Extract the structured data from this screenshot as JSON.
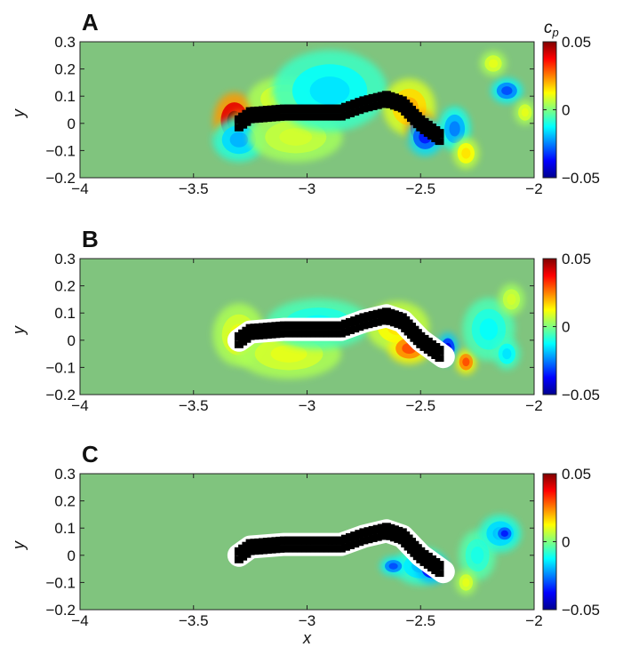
{
  "chart_data": [
    {
      "type": "heatmap",
      "panel_label": "A",
      "xlabel": "",
      "ylabel": "y",
      "xlim": [
        -4,
        -2
      ],
      "ylim": [
        -0.2,
        0.3
      ],
      "x_ticks": [
        "−4",
        "−3.5",
        "−3",
        "−2.5",
        "−2"
      ],
      "y_ticks": [
        "0.3",
        "0.2",
        "0.1",
        "0",
        "−0.1",
        "−0.2"
      ],
      "colorbar": {
        "label": "c_p",
        "label_base": "c",
        "label_sub": "p",
        "ticks": [
          "0.05",
          "0",
          "−0.05"
        ],
        "range": [
          -0.05,
          0.05
        ]
      },
      "body_masked": false,
      "body_shape": [
        [
          -3.3,
          0.0
        ],
        [
          -3.25,
          0.03
        ],
        [
          -3.1,
          0.04
        ],
        [
          -2.85,
          0.04
        ],
        [
          -2.75,
          0.07
        ],
        [
          -2.65,
          0.09
        ],
        [
          -2.58,
          0.07
        ],
        [
          -2.5,
          0.0
        ],
        [
          -2.4,
          -0.06
        ]
      ],
      "features": [
        {
          "x": -3.32,
          "y": 0.01,
          "rx": 0.08,
          "ry": 0.09,
          "cp": 0.05
        },
        {
          "x": -3.3,
          "y": 0.01,
          "rx": 0.03,
          "ry": 0.03,
          "cp": 0.05
        },
        {
          "x": -3.3,
          "y": -0.06,
          "rx": 0.1,
          "ry": 0.07,
          "cp": -0.02
        },
        {
          "x": -3.1,
          "y": 0.09,
          "rx": 0.14,
          "ry": 0.07,
          "cp": 0.01
        },
        {
          "x": -3.05,
          "y": -0.05,
          "rx": 0.18,
          "ry": 0.08,
          "cp": 0.008
        },
        {
          "x": -2.9,
          "y": 0.12,
          "rx": 0.22,
          "ry": 0.13,
          "cp": -0.015
        },
        {
          "x": -2.55,
          "y": 0.06,
          "rx": 0.1,
          "ry": 0.09,
          "cp": 0.02
        },
        {
          "x": -2.5,
          "y": -0.02,
          "rx": 0.06,
          "ry": 0.06,
          "cp": 0.05
        },
        {
          "x": -2.48,
          "y": -0.05,
          "rx": 0.07,
          "ry": 0.06,
          "cp": -0.035
        },
        {
          "x": -2.35,
          "y": -0.02,
          "rx": 0.06,
          "ry": 0.07,
          "cp": -0.025
        },
        {
          "x": -2.3,
          "y": -0.11,
          "rx": 0.05,
          "ry": 0.05,
          "cp": 0.015
        },
        {
          "x": -2.12,
          "y": 0.12,
          "rx": 0.06,
          "ry": 0.04,
          "cp": -0.03
        },
        {
          "x": -2.18,
          "y": 0.22,
          "rx": 0.05,
          "ry": 0.04,
          "cp": 0.01
        },
        {
          "x": -2.04,
          "y": 0.04,
          "rx": 0.04,
          "ry": 0.04,
          "cp": 0.01
        }
      ]
    },
    {
      "type": "heatmap",
      "panel_label": "B",
      "xlabel": "",
      "ylabel": "y",
      "xlim": [
        -4,
        -2
      ],
      "ylim": [
        -0.2,
        0.3
      ],
      "x_ticks": [
        "−4",
        "−3.5",
        "−3",
        "−2.5",
        "−2"
      ],
      "y_ticks": [
        "0.3",
        "0.2",
        "0.1",
        "0",
        "−0.1",
        "−0.2"
      ],
      "colorbar": {
        "label": "",
        "label_base": "",
        "label_sub": "",
        "ticks": [
          "0.05",
          "0",
          "−0.05"
        ],
        "range": [
          -0.05,
          0.05
        ]
      },
      "body_masked": true,
      "body_shape": [
        [
          -3.3,
          0.0
        ],
        [
          -3.25,
          0.03
        ],
        [
          -3.1,
          0.04
        ],
        [
          -2.85,
          0.04
        ],
        [
          -2.75,
          0.07
        ],
        [
          -2.65,
          0.09
        ],
        [
          -2.58,
          0.07
        ],
        [
          -2.5,
          0.0
        ],
        [
          -2.4,
          -0.06
        ]
      ],
      "features": [
        {
          "x": -3.3,
          "y": 0.02,
          "rx": 0.1,
          "ry": 0.1,
          "cp": 0.01
        },
        {
          "x": -3.3,
          "y": 0.0,
          "rx": 0.04,
          "ry": 0.04,
          "cp": 0.03
        },
        {
          "x": -3.08,
          "y": -0.05,
          "rx": 0.2,
          "ry": 0.08,
          "cp": 0.01
        },
        {
          "x": -2.95,
          "y": 0.06,
          "rx": 0.2,
          "ry": 0.08,
          "cp": -0.012
        },
        {
          "x": -2.6,
          "y": 0.05,
          "rx": 0.12,
          "ry": 0.08,
          "cp": 0.015
        },
        {
          "x": -2.55,
          "y": -0.03,
          "rx": 0.08,
          "ry": 0.05,
          "cp": 0.03
        },
        {
          "x": -2.38,
          "y": -0.03,
          "rx": 0.04,
          "ry": 0.05,
          "cp": -0.04
        },
        {
          "x": -2.3,
          "y": -0.08,
          "rx": 0.04,
          "ry": 0.04,
          "cp": 0.03
        },
        {
          "x": -2.2,
          "y": 0.04,
          "rx": 0.1,
          "ry": 0.1,
          "cp": -0.012
        },
        {
          "x": -2.1,
          "y": 0.15,
          "rx": 0.05,
          "ry": 0.05,
          "cp": 0.008
        },
        {
          "x": -2.12,
          "y": -0.05,
          "rx": 0.05,
          "ry": 0.05,
          "cp": -0.015
        }
      ]
    },
    {
      "type": "heatmap",
      "panel_label": "C",
      "xlabel": "x",
      "ylabel": "y",
      "xlim": [
        -4,
        -2
      ],
      "ylim": [
        -0.2,
        0.3
      ],
      "x_ticks": [
        "−4",
        "−3.5",
        "−3",
        "−2.5",
        "−2"
      ],
      "y_ticks": [
        "0.3",
        "0.2",
        "0.1",
        "0",
        "−0.1",
        "−0.2"
      ],
      "colorbar": {
        "label": "",
        "label_base": "",
        "label_sub": "",
        "ticks": [
          "0.05",
          "0",
          "−0.05"
        ],
        "range": [
          -0.05,
          0.05
        ]
      },
      "body_masked": true,
      "body_shape": [
        [
          -3.3,
          0.0
        ],
        [
          -3.25,
          0.03
        ],
        [
          -3.1,
          0.04
        ],
        [
          -2.85,
          0.04
        ],
        [
          -2.75,
          0.07
        ],
        [
          -2.65,
          0.09
        ],
        [
          -2.58,
          0.07
        ],
        [
          -2.5,
          0.0
        ],
        [
          -2.4,
          -0.06
        ]
      ],
      "features": [
        {
          "x": -2.5,
          "y": -0.04,
          "rx": 0.1,
          "ry": 0.06,
          "cp": -0.018
        },
        {
          "x": -2.45,
          "y": -0.05,
          "rx": 0.06,
          "ry": 0.045,
          "cp": -0.045
        },
        {
          "x": -2.62,
          "y": -0.04,
          "rx": 0.05,
          "ry": 0.03,
          "cp": -0.03
        },
        {
          "x": -2.25,
          "y": 0.0,
          "rx": 0.07,
          "ry": 0.08,
          "cp": -0.01
        },
        {
          "x": -2.15,
          "y": 0.08,
          "rx": 0.08,
          "ry": 0.06,
          "cp": -0.02
        },
        {
          "x": -2.13,
          "y": 0.08,
          "rx": 0.04,
          "ry": 0.03,
          "cp": -0.035
        },
        {
          "x": -2.3,
          "y": -0.1,
          "rx": 0.04,
          "ry": 0.04,
          "cp": 0.01
        }
      ]
    }
  ]
}
